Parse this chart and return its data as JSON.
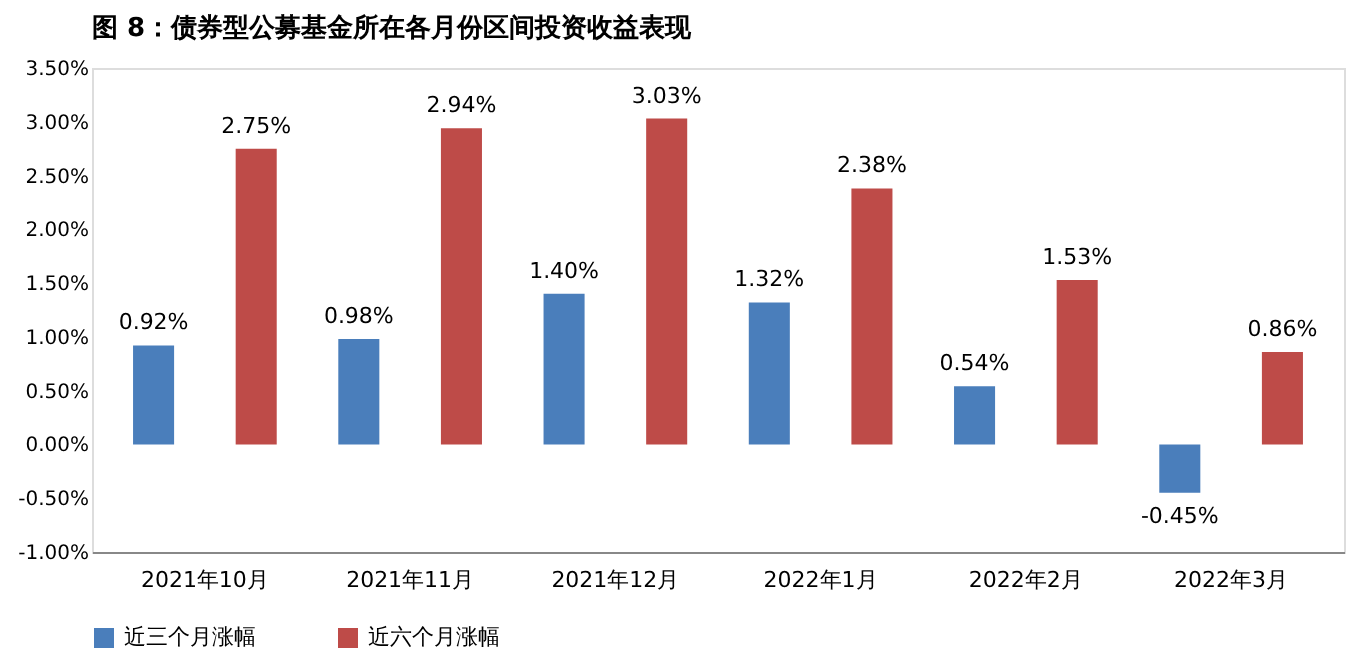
{
  "chart_data": {
    "type": "bar",
    "title": "图 8：债券型公募基金所在各月份区间投资收益表现",
    "categories": [
      "2021年10月",
      "2021年11月",
      "2021年12月",
      "2022年1月",
      "2022年2月",
      "2022年3月"
    ],
    "series": [
      {
        "name": "近三个月涨幅",
        "color": "#4a7ebb",
        "values": [
          0.92,
          0.98,
          1.4,
          1.32,
          0.54,
          -0.45
        ],
        "value_labels": [
          "0.92%",
          "0.98%",
          "1.40%",
          "1.32%",
          "0.54%",
          "-0.45%"
        ]
      },
      {
        "name": "近六个月涨幅",
        "color": "#be4b48",
        "values": [
          2.75,
          2.94,
          3.03,
          2.38,
          1.53,
          0.86
        ],
        "value_labels": [
          "2.75%",
          "2.94%",
          "3.03%",
          "2.38%",
          "1.53%",
          "0.86%"
        ]
      }
    ],
    "ylim": [
      -1.0,
      3.5
    ],
    "yticks": [
      {
        "value": -1.0,
        "label": "-1.00%"
      },
      {
        "value": -0.5,
        "label": "-0.50%"
      },
      {
        "value": 0.0,
        "label": "0.00%"
      },
      {
        "value": 0.5,
        "label": "0.50%"
      },
      {
        "value": 1.0,
        "label": "1.00%"
      },
      {
        "value": 1.5,
        "label": "1.50%"
      },
      {
        "value": 2.0,
        "label": "2.00%"
      },
      {
        "value": 2.5,
        "label": "2.50%"
      },
      {
        "value": 3.0,
        "label": "3.00%"
      },
      {
        "value": 3.5,
        "label": "3.50%"
      }
    ],
    "grid": false,
    "legend": "bottom"
  }
}
